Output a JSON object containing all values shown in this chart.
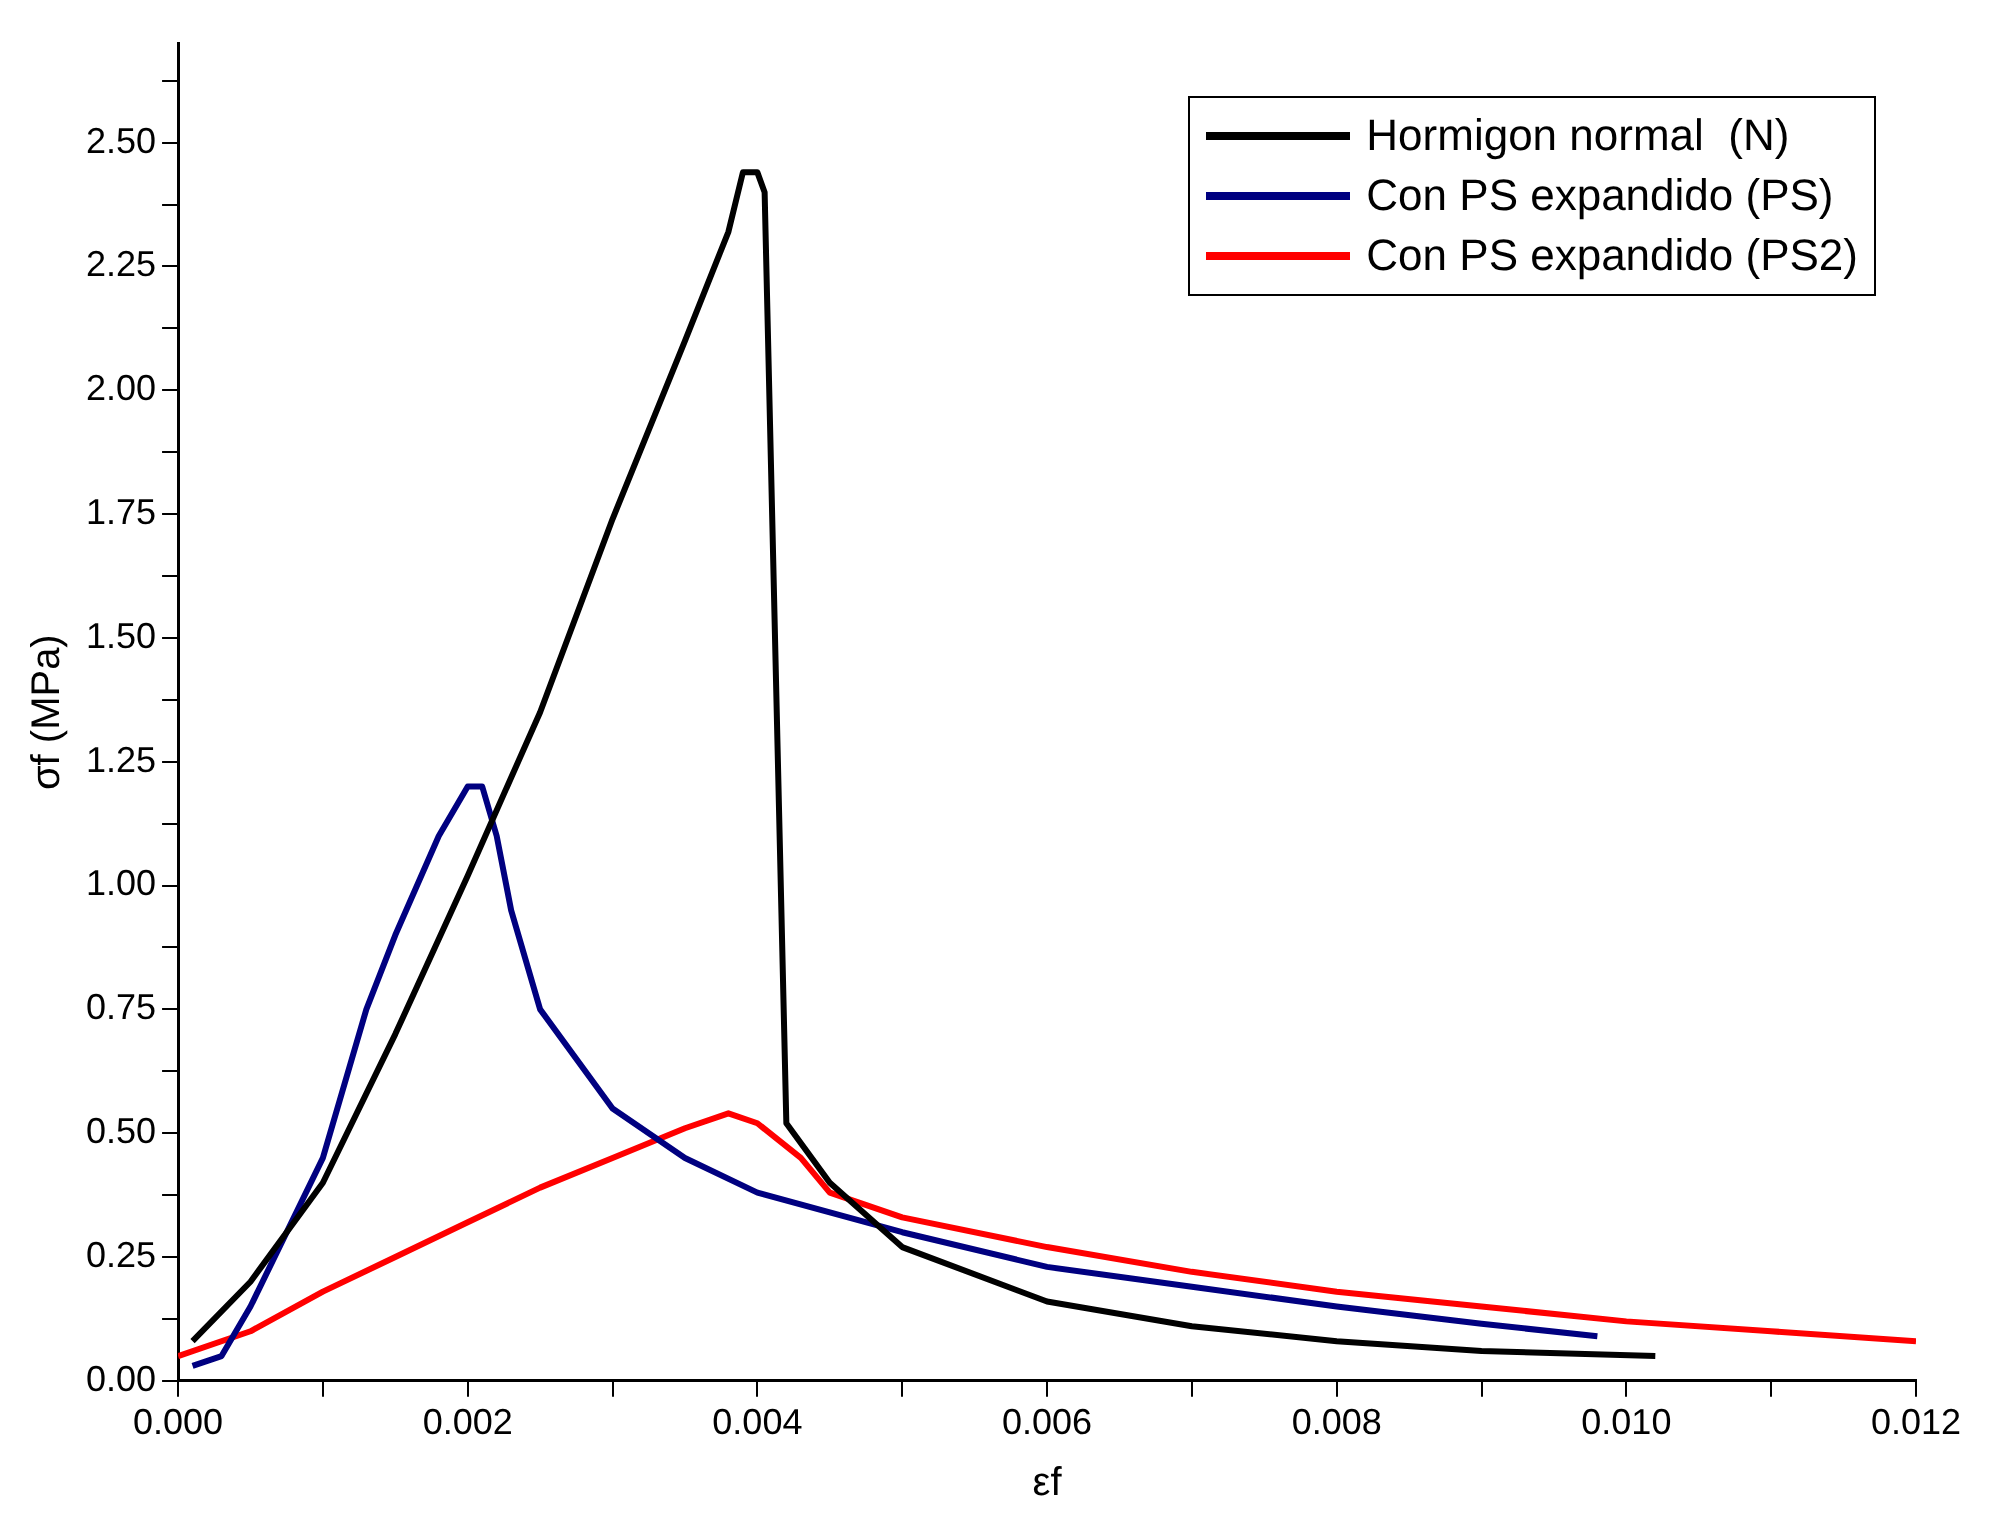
{
  "chart_data": {
    "type": "line",
    "xlabel": "εf",
    "ylabel": "σf (MPa)",
    "xlim": [
      0,
      0.012
    ],
    "ylim": [
      0,
      2.7
    ],
    "xticks": [
      {
        "value": 0,
        "label": "0.000"
      },
      {
        "value": 0.001,
        "label": null
      },
      {
        "value": 0.002,
        "label": "0.002"
      },
      {
        "value": 0.003,
        "label": null
      },
      {
        "value": 0.004,
        "label": "0.004"
      },
      {
        "value": 0.005,
        "label": null
      },
      {
        "value": 0.006,
        "label": "0.006"
      },
      {
        "value": 0.007,
        "label": null
      },
      {
        "value": 0.008,
        "label": "0.008"
      },
      {
        "value": 0.009,
        "label": null
      },
      {
        "value": 0.01,
        "label": "0.010"
      },
      {
        "value": 0.011,
        "label": null
      },
      {
        "value": 0.012,
        "label": "0.012"
      }
    ],
    "yticks": [
      {
        "value": 0,
        "label": "0.00"
      },
      {
        "value": 0.125,
        "label": null
      },
      {
        "value": 0.25,
        "label": "0.25"
      },
      {
        "value": 0.375,
        "label": null
      },
      {
        "value": 0.5,
        "label": "0.50"
      },
      {
        "value": 0.625,
        "label": null
      },
      {
        "value": 0.75,
        "label": "0.75"
      },
      {
        "value": 0.875,
        "label": null
      },
      {
        "value": 1,
        "label": "1.00"
      },
      {
        "value": 1.125,
        "label": null
      },
      {
        "value": 1.25,
        "label": "1.25"
      },
      {
        "value": 1.375,
        "label": null
      },
      {
        "value": 1.5,
        "label": "1.50"
      },
      {
        "value": 1.625,
        "label": null
      },
      {
        "value": 1.75,
        "label": "1.75"
      },
      {
        "value": 1.875,
        "label": null
      },
      {
        "value": 2,
        "label": "2.00"
      },
      {
        "value": 2.125,
        "label": null
      },
      {
        "value": 2.25,
        "label": "2.25"
      },
      {
        "value": 2.375,
        "label": null
      },
      {
        "value": 2.5,
        "label": "2.50"
      },
      {
        "value": 2.625,
        "label": null
      }
    ],
    "grid": false,
    "legend": "top right",
    "marker": "none",
    "line_style": "solid",
    "series": [
      {
        "name": "Hormigon normal  (N)",
        "color": "#000000",
        "x": [
          0.0001,
          0.0005,
          0.001,
          0.0015,
          0.002,
          0.0025,
          0.003,
          0.0035,
          0.0038,
          0.0039,
          0.004,
          0.00405,
          0.0042,
          0.0045,
          0.005,
          0.006,
          0.007,
          0.008,
          0.009,
          0.0102
        ],
        "values": [
          0.08,
          0.2,
          0.4,
          0.7,
          1.02,
          1.35,
          1.74,
          2.1,
          2.32,
          2.44,
          2.44,
          2.4,
          0.52,
          0.4,
          0.27,
          0.16,
          0.11,
          0.08,
          0.06,
          0.05
        ]
      },
      {
        "name": "Con PS expandido (PS)",
        "color": "#000080",
        "x": [
          0.0001,
          0.0003,
          0.0005,
          0.001,
          0.0013,
          0.0015,
          0.0018,
          0.002,
          0.0021,
          0.0022,
          0.0023,
          0.0025,
          0.003,
          0.0035,
          0.004,
          0.005,
          0.006,
          0.007,
          0.008,
          0.009,
          0.0098
        ],
        "values": [
          0.03,
          0.05,
          0.15,
          0.45,
          0.75,
          0.9,
          1.1,
          1.2,
          1.2,
          1.1,
          0.95,
          0.75,
          0.55,
          0.45,
          0.38,
          0.3,
          0.23,
          0.19,
          0.15,
          0.115,
          0.09
        ]
      },
      {
        "name": "Con PS expandido (PS2)",
        "color": "#ff0000",
        "x": [
          0,
          0.0005,
          0.001,
          0.0015,
          0.002,
          0.0025,
          0.003,
          0.0035,
          0.0038,
          0.004,
          0.0043,
          0.0045,
          0.005,
          0.006,
          0.007,
          0.008,
          0.009,
          0.01,
          0.011,
          0.012
        ],
        "values": [
          0.05,
          0.1,
          0.18,
          0.25,
          0.32,
          0.39,
          0.45,
          0.51,
          0.54,
          0.52,
          0.45,
          0.38,
          0.33,
          0.27,
          0.22,
          0.18,
          0.15,
          0.12,
          0.1,
          0.08
        ]
      }
    ]
  }
}
